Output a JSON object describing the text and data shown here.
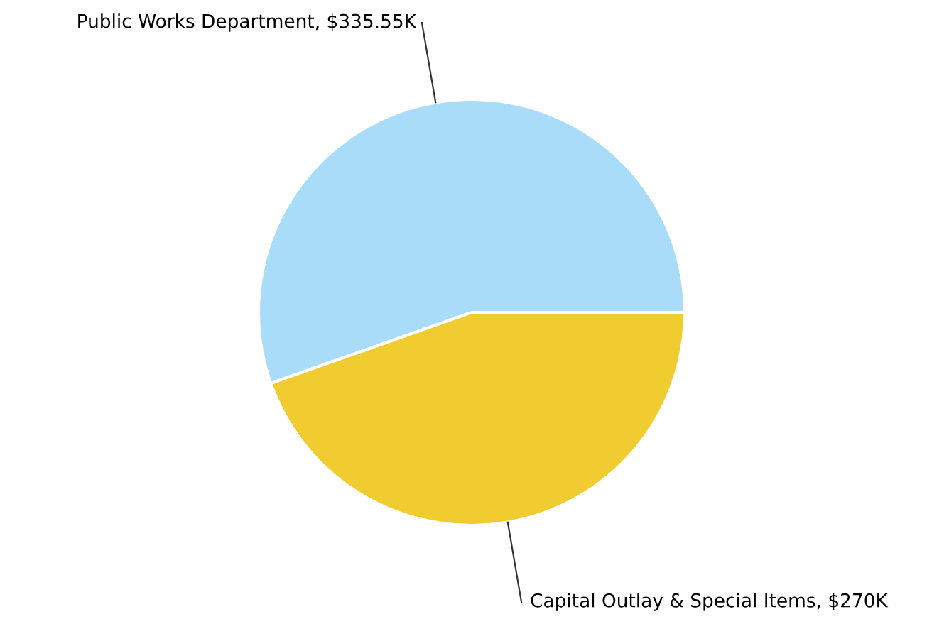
{
  "chart_data": {
    "type": "pie",
    "categories": [
      "Public Works Department",
      "Capital Outlay & Special Items"
    ],
    "values": [
      335.55,
      270
    ],
    "value_labels": [
      "$335.55K",
      "$270K"
    ],
    "colors": [
      "#a8dcf8",
      "#f0cc30"
    ]
  }
}
